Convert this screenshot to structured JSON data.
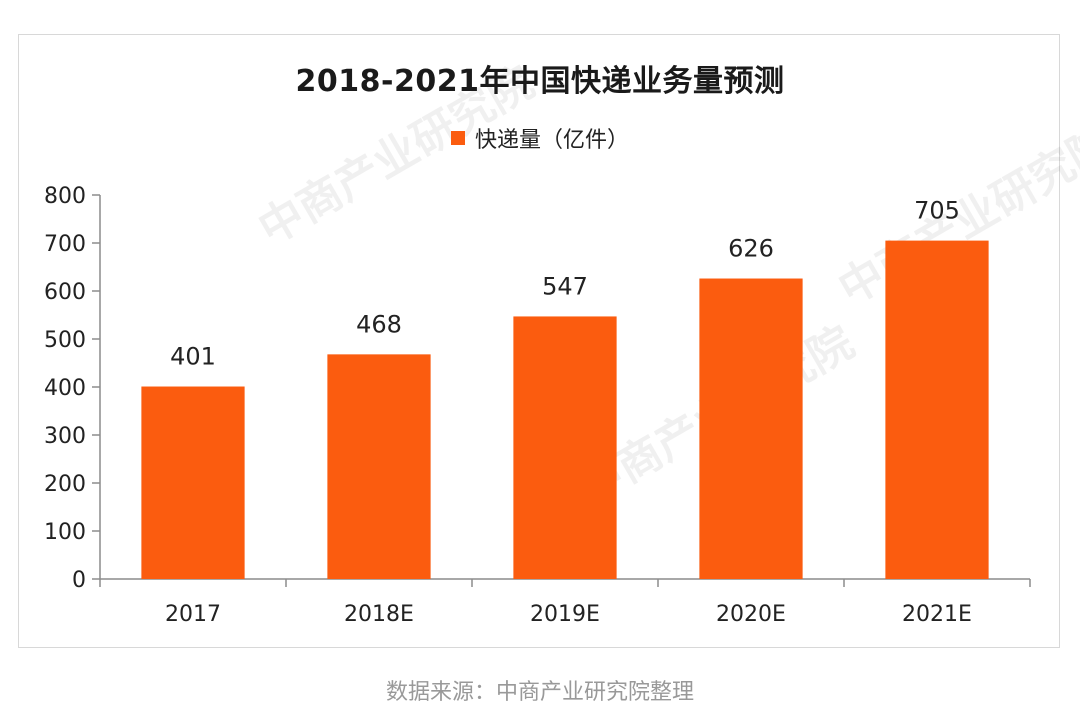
{
  "colors": {
    "bar": "#fb5c0f",
    "axis": "#8c8c8c",
    "text": "#222222",
    "footer": "#999999"
  },
  "footer": "数据来源：中商产业研究院整理",
  "chart_data": {
    "type": "bar",
    "title": "2018-2021年中国快递业务量预测",
    "legend": "快递量（亿件）",
    "legend_position": "top",
    "categories": [
      "2017",
      "2018E",
      "2019E",
      "2020E",
      "2021E"
    ],
    "values": [
      401,
      468,
      547,
      626,
      705
    ],
    "data_labels": [
      "401",
      "468",
      "547",
      "626",
      "705"
    ],
    "yticks": [
      0,
      100,
      200,
      300,
      400,
      500,
      600,
      700,
      800
    ],
    "ylim": [
      0,
      800
    ],
    "xlabel": "",
    "ylabel": "",
    "grid": false
  }
}
